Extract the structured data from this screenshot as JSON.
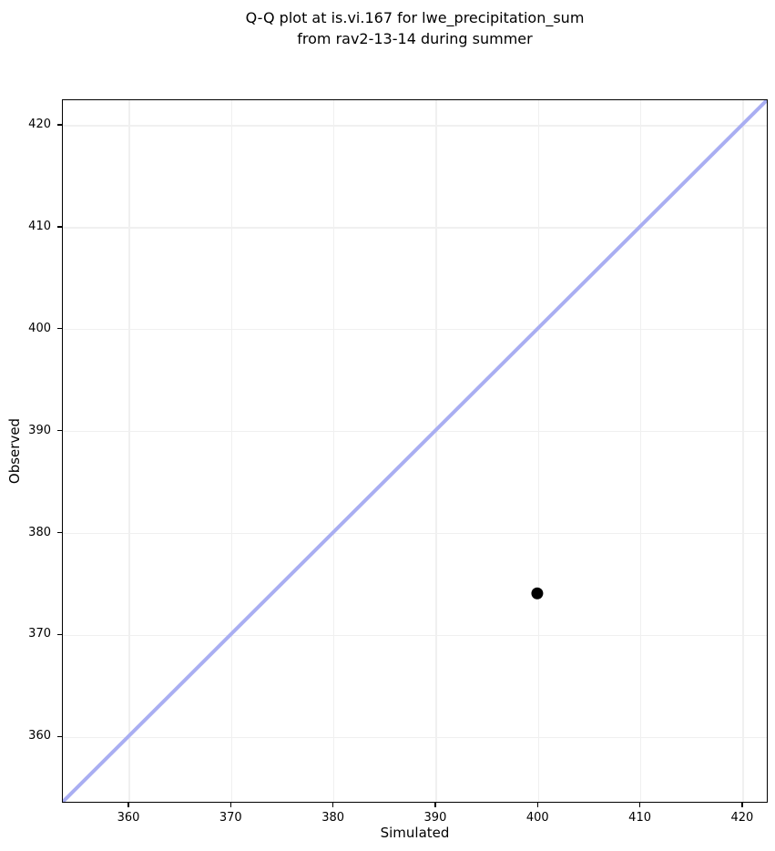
{
  "chart_data": {
    "type": "scatter",
    "title": "Q-Q plot at is.vi.167 for lwe_precipitation_sum\nfrom rav2-13-14 during summer",
    "xlabel": "Simulated",
    "ylabel": "Observed",
    "xlim": [
      353.5,
      422.5
    ],
    "ylim": [
      353.5,
      422.5
    ],
    "xticks": [
      360,
      370,
      380,
      390,
      400,
      410,
      420
    ],
    "yticks": [
      360,
      370,
      380,
      390,
      400,
      410,
      420
    ],
    "grid": true,
    "legend": false,
    "grid_color": "#f0f0f0",
    "spine_color": "#000000",
    "background_color": "#ffffff",
    "series": [
      {
        "name": "identity-line",
        "type": "line",
        "color": "#a9aef2",
        "line_width": 4,
        "points": [
          {
            "x": 353.5,
            "y": 353.5
          },
          {
            "x": 422.5,
            "y": 422.5
          }
        ]
      },
      {
        "name": "quantile-points",
        "type": "scatter",
        "color": "#000000",
        "marker_radius": 6.5,
        "points": [
          {
            "x": 400,
            "y": 374
          }
        ]
      }
    ]
  }
}
